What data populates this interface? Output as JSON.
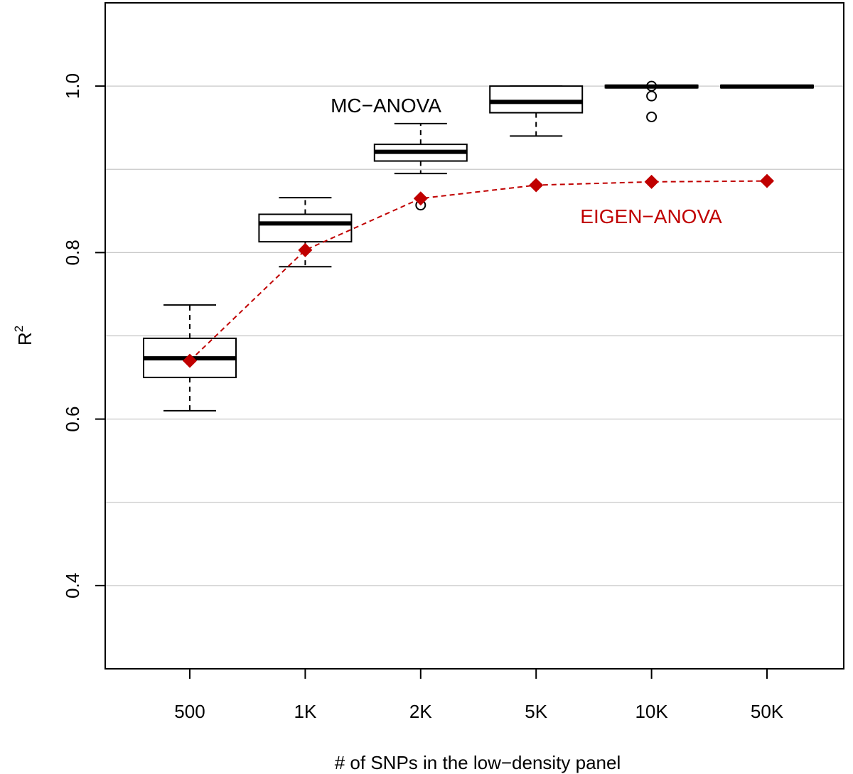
{
  "chart_data": {
    "type": "box",
    "xlabel": "# of SNPs in the low−density panel",
    "ylabel": "R",
    "ylabel_superscript": "2",
    "ylim": [
      0.3,
      1.1
    ],
    "yticks": [
      0.4,
      0.6,
      0.8,
      1.0
    ],
    "ytick_labels": [
      "0.4",
      "0.6",
      "0.8",
      "1.0"
    ],
    "ygrid": [
      0.3,
      0.4,
      0.5,
      0.6,
      0.7,
      0.8,
      0.9,
      1.0
    ],
    "grid": "horizontal",
    "categories": [
      "500",
      "1K",
      "2K",
      "5K",
      "10K",
      "50K"
    ],
    "series": [
      {
        "name": "MC−ANOVA",
        "kind": "boxplot",
        "color": "#000000",
        "boxes": [
          {
            "category": "500",
            "whisker_low": 0.61,
            "q1": 0.65,
            "median": 0.673,
            "q3": 0.697,
            "whisker_high": 0.737,
            "outliers": []
          },
          {
            "category": "1K",
            "whisker_low": 0.783,
            "q1": 0.813,
            "median": 0.835,
            "q3": 0.846,
            "whisker_high": 0.866,
            "outliers": []
          },
          {
            "category": "2K",
            "whisker_low": 0.895,
            "q1": 0.91,
            "median": 0.921,
            "q3": 0.93,
            "whisker_high": 0.955,
            "outliers": [
              0.857
            ]
          },
          {
            "category": "5K",
            "whisker_low": 0.94,
            "q1": 0.968,
            "median": 0.981,
            "q3": 1.0,
            "whisker_high": 1.0,
            "outliers": []
          },
          {
            "category": "10K",
            "whisker_low": 0.998,
            "q1": 0.998,
            "median": 0.9995,
            "q3": 1.001,
            "whisker_high": 1.001,
            "outliers": [
              1.0,
              0.988,
              0.963
            ]
          },
          {
            "category": "50K",
            "whisker_low": 0.998,
            "q1": 0.998,
            "median": 0.9995,
            "q3": 1.001,
            "whisker_high": 1.001,
            "outliers": []
          }
        ]
      },
      {
        "name": "EIGEN−ANOVA",
        "kind": "line",
        "color": "#c00000",
        "values": [
          0.67,
          0.803,
          0.865,
          0.881,
          0.885,
          0.886
        ]
      }
    ],
    "annotations": [
      {
        "text": "MC−ANOVA",
        "color": "#000000"
      },
      {
        "text": "EIGEN−ANOVA",
        "color": "#c00000"
      }
    ]
  }
}
